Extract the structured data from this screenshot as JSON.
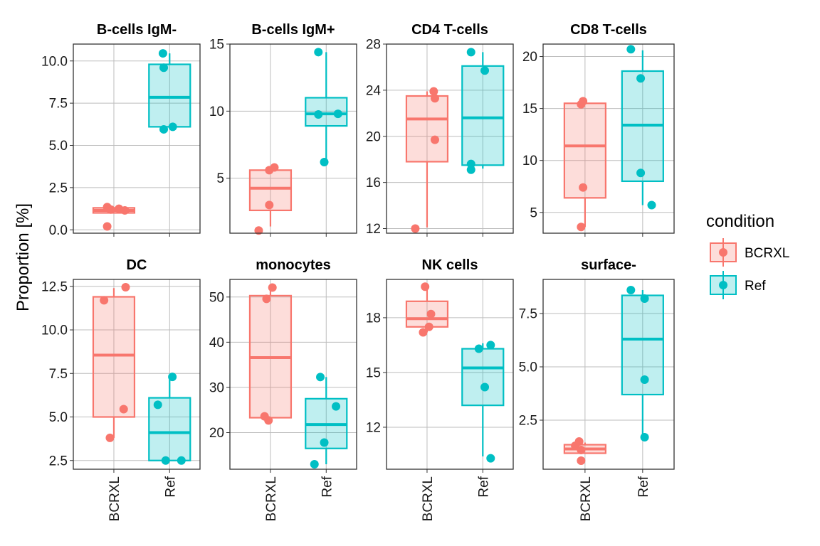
{
  "chart_data": {
    "type": "box",
    "ylabel": "Proportion [%]",
    "categories": [
      "BCRXL",
      "Ref"
    ],
    "legend": {
      "title": "condition",
      "position": "right",
      "entries": [
        {
          "label": "BCRXL",
          "color": "#F8766D"
        },
        {
          "label": "Ref",
          "color": "#00BFC4"
        }
      ]
    },
    "grid": true,
    "panels": [
      {
        "title": "B-cells IgM-",
        "ylim": [
          -0.2,
          11.0
        ],
        "yticks": [
          0.0,
          2.5,
          5.0,
          7.5,
          10.0
        ],
        "ytick_labels": [
          "0.0",
          "2.5",
          "5.0",
          "7.5",
          "10.0"
        ],
        "series": [
          {
            "name": "BCRXL",
            "box": {
              "q1": 1.0,
              "median": 1.15,
              "q3": 1.3,
              "lower": 1.0,
              "upper": 1.3
            },
            "points": [
              [
                -0.17,
                0.2
              ],
              [
                -0.17,
                1.35
              ],
              [
                -0.08,
                1.2
              ],
              [
                0.13,
                1.25
              ],
              [
                0.28,
                1.15
              ]
            ]
          },
          {
            "name": "Ref",
            "box": {
              "q1": 6.1,
              "median": 7.85,
              "q3": 9.8,
              "lower": 6.1,
              "upper": 10.45
            },
            "points": [
              [
                -0.17,
                10.45
              ],
              [
                -0.15,
                9.6
              ],
              [
                -0.15,
                5.95
              ],
              [
                0.08,
                6.1
              ]
            ]
          }
        ]
      },
      {
        "title": "B-cells IgM+",
        "ylim": [
          0.9,
          15.0
        ],
        "yticks": [
          5,
          10,
          15
        ],
        "ytick_labels": [
          "5",
          "10",
          "15"
        ],
        "series": [
          {
            "name": "BCRXL",
            "box": {
              "q1": 2.6,
              "median": 4.25,
              "q3": 5.6,
              "lower": 1.4,
              "upper": 5.8
            },
            "points": [
              [
                -0.3,
                1.1
              ],
              [
                -0.03,
                5.6
              ],
              [
                0.1,
                5.8
              ],
              [
                -0.03,
                3.0
              ]
            ]
          },
          {
            "name": "Ref",
            "box": {
              "q1": 8.9,
              "median": 9.8,
              "q3": 11.0,
              "lower": 6.2,
              "upper": 14.4
            },
            "points": [
              [
                -0.2,
                14.4
              ],
              [
                -0.2,
                9.75
              ],
              [
                0.3,
                9.8
              ],
              [
                -0.05,
                6.2
              ]
            ]
          }
        ]
      },
      {
        "title": "CD4 T-cells",
        "ylim": [
          11.6,
          28.0
        ],
        "yticks": [
          12,
          16,
          20,
          24,
          28
        ],
        "ytick_labels": [
          "12",
          "16",
          "20",
          "24",
          "28"
        ],
        "series": [
          {
            "name": "BCRXL",
            "box": {
              "q1": 17.8,
              "median": 21.5,
              "q3": 23.5,
              "lower": 12.1,
              "upper": 23.9
            },
            "points": [
              [
                -0.3,
                12.0
              ],
              [
                0.17,
                23.9
              ],
              [
                0.2,
                23.3
              ],
              [
                0.2,
                19.7
              ]
            ]
          },
          {
            "name": "Ref",
            "box": {
              "q1": 17.5,
              "median": 21.6,
              "q3": 26.1,
              "lower": 17.2,
              "upper": 27.3
            },
            "points": [
              [
                -0.3,
                27.3
              ],
              [
                0.05,
                25.7
              ],
              [
                -0.3,
                17.6
              ],
              [
                -0.3,
                17.1
              ]
            ]
          }
        ]
      },
      {
        "title": "CD8 T-cells",
        "ylim": [
          3.0,
          21.2
        ],
        "yticks": [
          5,
          10,
          15,
          20
        ],
        "ytick_labels": [
          "5",
          "10",
          "15",
          "20"
        ],
        "series": [
          {
            "name": "BCRXL",
            "box": {
              "q1": 6.4,
              "median": 11.4,
              "q3": 15.5,
              "lower": 3.6,
              "upper": 15.6
            },
            "points": [
              [
                -0.1,
                3.6
              ],
              [
                -0.1,
                15.4
              ],
              [
                -0.05,
                15.7
              ],
              [
                -0.05,
                7.4
              ]
            ]
          },
          {
            "name": "Ref",
            "box": {
              "q1": 8.0,
              "median": 13.4,
              "q3": 18.6,
              "lower": 5.7,
              "upper": 20.6
            },
            "points": [
              [
                -0.3,
                20.7
              ],
              [
                -0.05,
                17.9
              ],
              [
                -0.05,
                8.8
              ],
              [
                0.23,
                5.7
              ]
            ]
          }
        ]
      },
      {
        "title": "DC",
        "ylim": [
          2.0,
          12.9
        ],
        "yticks": [
          2.5,
          5.0,
          7.5,
          10.0,
          12.5
        ],
        "ytick_labels": [
          "2.5",
          "5.0",
          "7.5",
          "10.0",
          "12.5"
        ],
        "series": [
          {
            "name": "BCRXL",
            "box": {
              "q1": 5.0,
              "median": 8.55,
              "q3": 11.9,
              "lower": 3.8,
              "upper": 12.4
            },
            "points": [
              [
                -0.25,
                11.7
              ],
              [
                0.3,
                12.45
              ],
              [
                0.25,
                5.45
              ],
              [
                -0.1,
                3.8
              ]
            ]
          },
          {
            "name": "Ref",
            "box": {
              "q1": 2.5,
              "median": 4.1,
              "q3": 6.1,
              "lower": 2.5,
              "upper": 7.3
            },
            "points": [
              [
                -0.3,
                5.7
              ],
              [
                0.07,
                7.3
              ],
              [
                -0.1,
                2.5
              ],
              [
                0.3,
                2.5
              ]
            ]
          }
        ]
      },
      {
        "title": "monocytes",
        "ylim": [
          11.9,
          53.9
        ],
        "yticks": [
          20,
          30,
          40,
          50
        ],
        "ytick_labels": [
          "20",
          "30",
          "40",
          "50"
        ],
        "series": [
          {
            "name": "BCRXL",
            "box": {
              "q1": 23.3,
              "median": 36.6,
              "q3": 50.3,
              "lower": 22.7,
              "upper": 52.2
            },
            "points": [
              [
                -0.1,
                49.6
              ],
              [
                0.05,
                52.1
              ],
              [
                -0.15,
                23.6
              ],
              [
                -0.05,
                22.7
              ]
            ]
          },
          {
            "name": "Ref",
            "box": {
              "q1": 16.5,
              "median": 21.8,
              "q3": 27.5,
              "lower": 13.0,
              "upper": 32.3
            },
            "points": [
              [
                -0.15,
                32.3
              ],
              [
                0.25,
                25.8
              ],
              [
                -0.05,
                17.8
              ],
              [
                -0.3,
                13.0
              ]
            ]
          }
        ]
      },
      {
        "title": "NK cells",
        "ylim": [
          9.7,
          20.1
        ],
        "yticks": [
          12,
          15,
          18
        ],
        "ytick_labels": [
          "12",
          "15",
          "18"
        ],
        "series": [
          {
            "name": "BCRXL",
            "box": {
              "q1": 17.5,
              "median": 17.95,
              "q3": 18.9,
              "lower": 17.2,
              "upper": 19.7
            },
            "points": [
              [
                -0.05,
                19.7
              ],
              [
                0.1,
                18.2
              ],
              [
                0.05,
                17.5
              ],
              [
                -0.1,
                17.2
              ]
            ]
          },
          {
            "name": "Ref",
            "box": {
              "q1": 13.2,
              "median": 15.25,
              "q3": 16.3,
              "lower": 10.4,
              "upper": 16.6
            },
            "points": [
              [
                -0.1,
                16.3
              ],
              [
                0.2,
                16.5
              ],
              [
                0.05,
                14.2
              ],
              [
                0.2,
                10.3
              ]
            ]
          }
        ]
      },
      {
        "title": "surface-",
        "ylim": [
          0.2,
          9.1
        ],
        "yticks": [
          2.5,
          5.0,
          7.5
        ],
        "ytick_labels": [
          "2.5",
          "5.0",
          "7.5"
        ],
        "series": [
          {
            "name": "BCRXL",
            "box": {
              "q1": 0.95,
              "median": 1.15,
              "q3": 1.35,
              "lower": 0.95,
              "upper": 1.45
            },
            "points": [
              [
                -0.25,
                1.3
              ],
              [
                -0.15,
                1.5
              ],
              [
                -0.1,
                1.1
              ],
              [
                -0.1,
                0.6
              ]
            ]
          },
          {
            "name": "Ref",
            "box": {
              "q1": 3.7,
              "median": 6.3,
              "q3": 8.35,
              "lower": 1.7,
              "upper": 8.6
            },
            "points": [
              [
                -0.3,
                8.6
              ],
              [
                0.05,
                8.2
              ],
              [
                0.05,
                4.4
              ],
              [
                0.05,
                1.7
              ]
            ]
          }
        ]
      }
    ]
  }
}
